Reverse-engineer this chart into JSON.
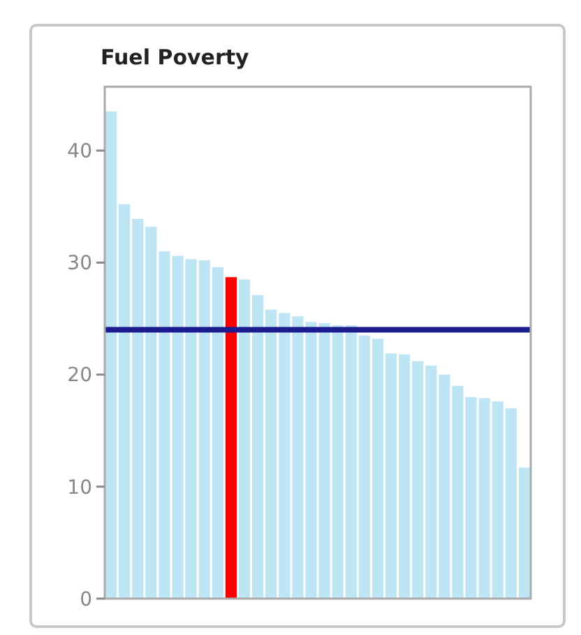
{
  "chart_data": {
    "type": "bar",
    "title": "Fuel Poverty",
    "categories": [
      null,
      null,
      null,
      null,
      null,
      null,
      null,
      null,
      null,
      null,
      null,
      null,
      null,
      null,
      null,
      null,
      null,
      null,
      null,
      null,
      null,
      null,
      null,
      null,
      null,
      null,
      null,
      null,
      null,
      null,
      null,
      null
    ],
    "values": [
      43.5,
      35.2,
      33.9,
      33.2,
      31,
      30.6,
      30.3,
      30.2,
      29.6,
      28.7,
      28.5,
      27.1,
      25.8,
      25.5,
      25.2,
      24.7,
      24.6,
      24.4,
      24.4,
      23.5,
      23.2,
      21.9,
      21.8,
      21.2,
      20.8,
      20,
      19,
      18,
      17.9,
      17.6,
      17,
      11.7
    ],
    "colors": [
      "#bde5f3",
      "#bde5f3",
      "#bde5f3",
      "#bde5f3",
      "#bde5f3",
      "#bde5f3",
      "#bde5f3",
      "#bde5f3",
      "#bde5f3",
      "#ff0000",
      "#bde5f3",
      "#bde5f3",
      "#bde5f3",
      "#bde5f3",
      "#bde5f3",
      "#bde5f3",
      "#bde5f3",
      "#bde5f3",
      "#bde5f3",
      "#bde5f3",
      "#bde5f3",
      "#bde5f3",
      "#bde5f3",
      "#bde5f3",
      "#bde5f3",
      "#bde5f3",
      "#bde5f3",
      "#bde5f3",
      "#bde5f3",
      "#bde5f3",
      "#bde5f3",
      "#bde5f3"
    ],
    "ylim": [
      0,
      45.7
    ],
    "yticks": [
      0,
      10,
      20,
      30,
      40
    ],
    "ref_lines": [
      {
        "axis": "y",
        "value": 24,
        "color": "#1c1c8f"
      }
    ],
    "tick_labels": "y",
    "grid": false
  }
}
